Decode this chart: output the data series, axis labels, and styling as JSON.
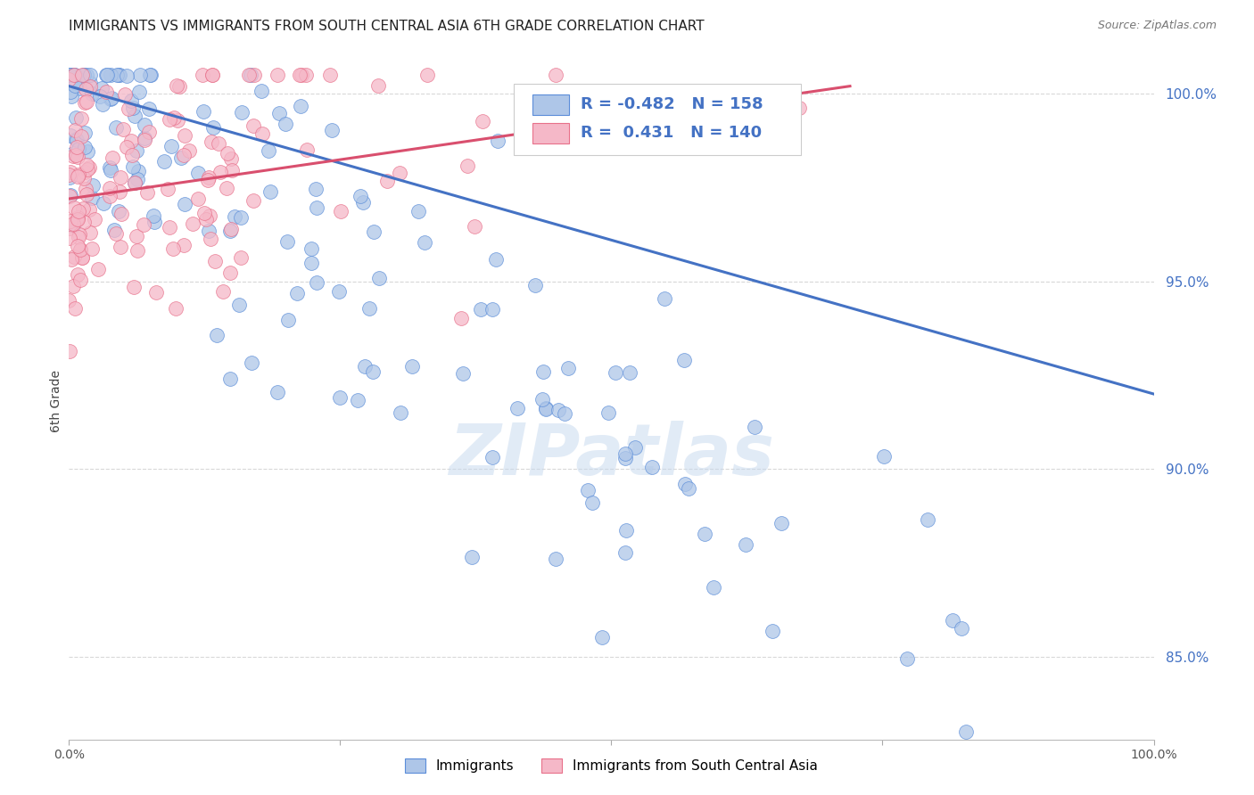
{
  "title": "IMMIGRANTS VS IMMIGRANTS FROM SOUTH CENTRAL ASIA 6TH GRADE CORRELATION CHART",
  "source": "Source: ZipAtlas.com",
  "ylabel": "6th Grade",
  "xlim": [
    0.0,
    1.0
  ],
  "ylim": [
    0.828,
    1.008
  ],
  "yticks": [
    0.85,
    0.9,
    0.95,
    1.0
  ],
  "ytick_labels": [
    "85.0%",
    "90.0%",
    "95.0%",
    "100.0%"
  ],
  "blue_color": "#aec6e8",
  "blue_edge_color": "#5b8dd9",
  "blue_line_color": "#4472c4",
  "pink_color": "#f5b8c8",
  "pink_edge_color": "#e8708a",
  "pink_line_color": "#d94f6e",
  "R_blue": -0.482,
  "N_blue": 158,
  "R_pink": 0.431,
  "N_pink": 140,
  "legend_label_blue": "Immigrants",
  "legend_label_pink": "Immigrants from South Central Asia",
  "watermark": "ZIPatlas",
  "background_color": "#ffffff",
  "grid_color": "#d8d8d8",
  "title_fontsize": 11,
  "blue_scatter_seed": 42,
  "pink_scatter_seed": 77,
  "blue_line_y0": 1.002,
  "blue_line_y1": 0.92,
  "pink_line_x0": 0.0,
  "pink_line_y0": 0.972,
  "pink_line_x1": 0.72,
  "pink_line_y1": 1.002
}
